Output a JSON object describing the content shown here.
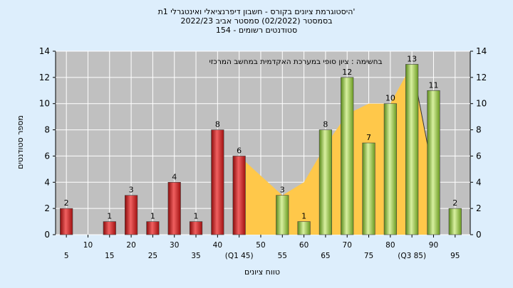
{
  "titles": [
    "'היסטוגרמת ציונים בקורס - חשבון דיפרנציאלי ואינטגרלי 1ת",
    "בסמסטר  (02/2022)  סמסטר אביב 2022/23",
    "סטודנטים רשומים - 154"
  ],
  "chart_data": {
    "type": "bar",
    "title": "",
    "annotation": "בחשימה : ציון סופי במערכת האקדמית במחשב המרכזי",
    "xlabel": "טווח ציונים",
    "ylabel": "מספר סטודנטים",
    "ylim": [
      0,
      14
    ],
    "yticks": [
      0,
      2,
      4,
      6,
      8,
      10,
      12,
      14
    ],
    "x_tick_labels": [
      "5",
      "10",
      "15",
      "20",
      "25",
      "30",
      "35",
      "40",
      "(Q1 45)",
      "50",
      "55",
      "60",
      "65",
      "70",
      "75",
      "80",
      "(Q3 85)",
      "90",
      "95"
    ],
    "x_values": [
      5,
      10,
      15,
      20,
      25,
      30,
      35,
      40,
      45,
      50,
      55,
      60,
      65,
      70,
      75,
      80,
      85,
      90,
      95
    ],
    "values": [
      2,
      0,
      1,
      3,
      1,
      4,
      1,
      8,
      6,
      0,
      3,
      1,
      8,
      12,
      7,
      10,
      13,
      11,
      2
    ],
    "data_labels": [
      "2",
      "",
      "1",
      "3",
      "1",
      "4",
      "1",
      "8",
      "6",
      "",
      "3",
      "1",
      "8",
      "12",
      "7",
      "10",
      "13",
      "11",
      "2"
    ],
    "bar_colors": [
      "red",
      "red",
      "red",
      "red",
      "red",
      "red",
      "red",
      "red",
      "red",
      "red",
      "green",
      "green",
      "green",
      "green",
      "green",
      "green",
      "green",
      "green",
      "green"
    ],
    "area": {
      "description": "yellow area behind bars",
      "x": [
        45,
        50,
        55,
        60,
        65,
        70,
        75,
        80,
        85,
        90
      ],
      "values": [
        6,
        4.5,
        3,
        4,
        6.8,
        9.2,
        10,
        10,
        13,
        4.5
      ]
    },
    "grid": true,
    "colors": {
      "plot_background": "#c0c0c0",
      "page_background": "#ddeefc",
      "red_bar": "#d42020",
      "green_bar": "#8fbf3a",
      "area_fill": "#ffc84a"
    }
  }
}
